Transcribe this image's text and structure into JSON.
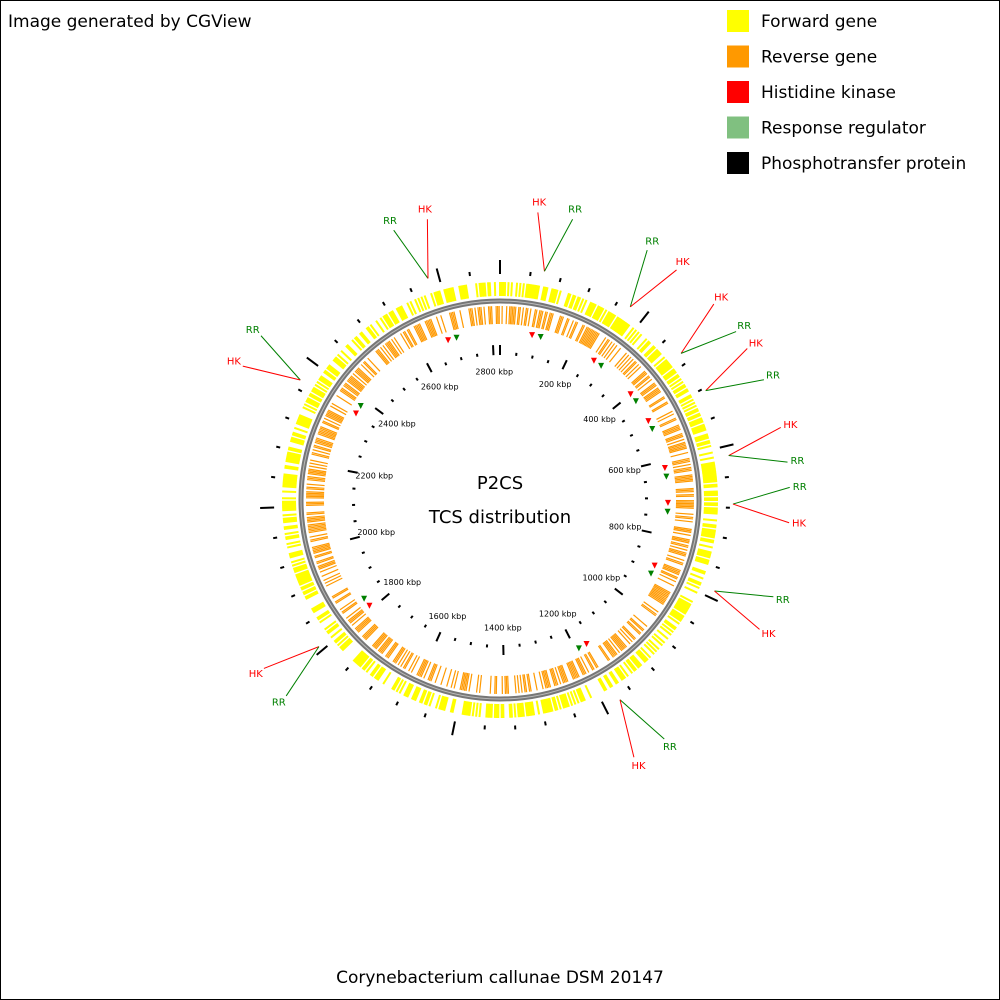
{
  "header": {
    "title": "Image generated by CGView"
  },
  "legend": [
    "Forward gene",
    "Reverse gene",
    "Histidine kinase",
    "Response regulator",
    "Phosphotransfer protein"
  ],
  "center": {
    "title": "P2CS",
    "subtitle": "TCS distribution"
  },
  "ruler_labels": [
    "200 kbp",
    "400 kbp",
    "600 kbp",
    "800 kbp",
    "1000 kbp",
    "1200 kbp",
    "1400 kbp",
    "1600 kbp",
    "1800 kbp",
    "2000 kbp",
    "2200 kbp",
    "2400 kbp",
    "2600 kbp",
    "2800 kbp"
  ],
  "annotations": [
    [
      "RR",
      "HK"
    ],
    [
      "HK",
      "RR"
    ],
    [
      "RR",
      "HK"
    ],
    [
      "HK",
      "RR"
    ],
    [
      "HK",
      "RR"
    ],
    [
      "HK",
      "RR"
    ],
    [
      "RR",
      "HK"
    ],
    [
      "RR",
      "HK"
    ],
    [
      "RR",
      "HK"
    ],
    [
      "HK",
      "RR"
    ],
    [
      "RR",
      "HK"
    ]
  ],
  "footer": {
    "organism": "Corynebacterium callunae DSM 20147"
  }
}
